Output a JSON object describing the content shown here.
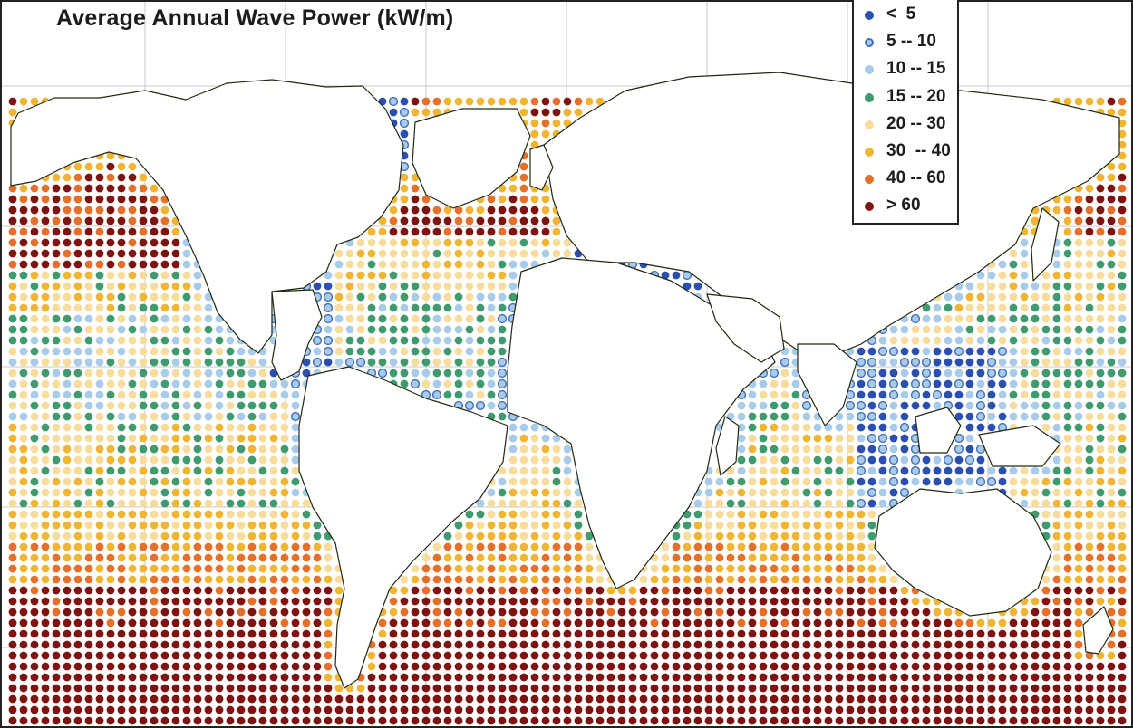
{
  "title": "Average Annual Wave Power (kW/m)",
  "legend": {
    "items": [
      {
        "label": "<  5",
        "color": "#2a4fb0"
      },
      {
        "label": "5 -- 10",
        "color": "#5b84c8"
      },
      {
        "label": "10 -- 15",
        "color": "#a9cbea"
      },
      {
        "label": "15 -- 20",
        "color": "#3f9a6e"
      },
      {
        "label": "20 -- 30",
        "color": "#f8dc9c"
      },
      {
        "label": "30  -- 40",
        "color": "#f1b534"
      },
      {
        "label": "40 -- 60",
        "color": "#e5702a"
      },
      {
        "label": "> 60",
        "color": "#7e1411"
      }
    ]
  },
  "colors": {
    "land": "#ffffff",
    "coastline": "#1f2a10",
    "grid": "#c8c8c8",
    "border": "#222222"
  }
}
